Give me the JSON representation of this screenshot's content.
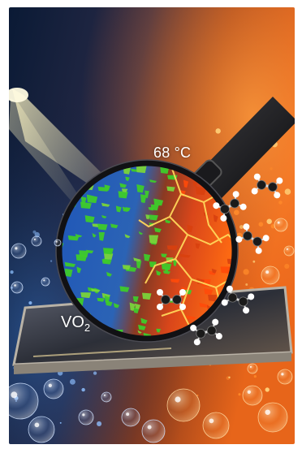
{
  "labels": {
    "temperature": "68 °C",
    "material_base": "VO",
    "material_subscript": "2"
  },
  "colors": {
    "insulating_phase": "#3ecb2a",
    "insulating_background": "#1f56b8",
    "metallic_phase": "#ff5a10",
    "crack_glow": "#ffd65a",
    "cool_side": "#0b1f3f",
    "warm_side": "#e7651a",
    "light_beam": "#fff6c4"
  },
  "icons": {
    "magnifier": "magnifying-glass-icon",
    "molecule": "ethylene-molecule-icon",
    "light": "light-beam"
  }
}
